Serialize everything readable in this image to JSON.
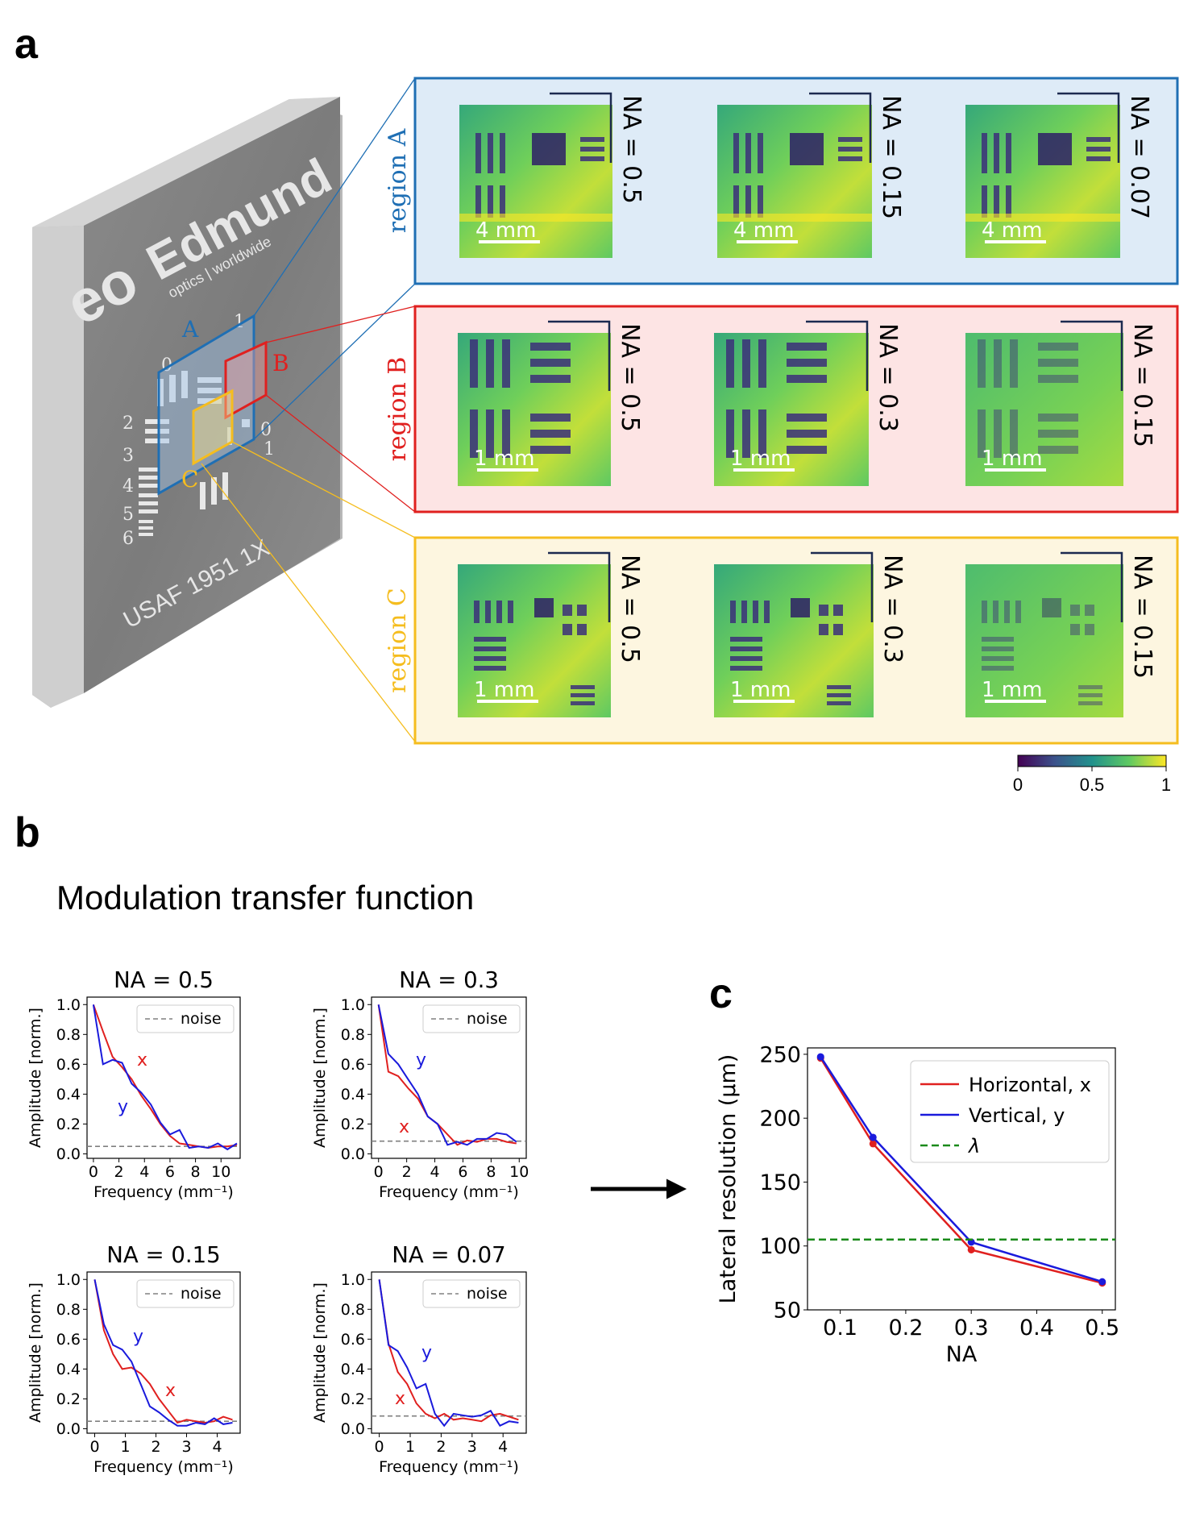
{
  "panel_labels": {
    "a": "a",
    "b": "b",
    "c": "c"
  },
  "target": {
    "brand": "Edmund",
    "brand_sub": "optics | worldwide",
    "logo": "eo",
    "usaf": "USAF  1951  1X",
    "region_letters": [
      "A",
      "B",
      "C"
    ],
    "group_numbers": [
      "0",
      "1",
      "2",
      "3",
      "4",
      "5",
      "6",
      "0",
      "1"
    ]
  },
  "regions": [
    {
      "label": "region A",
      "color": "#1f6fb4",
      "bg": "#deebf7",
      "tiles": [
        {
          "na": "NA = 0.5",
          "scale": "4 mm"
        },
        {
          "na": "NA = 0.15",
          "scale": "4 mm"
        },
        {
          "na": "NA = 0.07",
          "scale": "4 mm"
        }
      ]
    },
    {
      "label": "region B",
      "color": "#e0201f",
      "bg": "#fde4e4",
      "tiles": [
        {
          "na": "NA = 0.5",
          "scale": "1 mm"
        },
        {
          "na": "NA = 0.3",
          "scale": "1 mm"
        },
        {
          "na": "NA = 0.15",
          "scale": "1 mm"
        }
      ]
    },
    {
      "label": "region C",
      "color": "#f5bd1f",
      "bg": "#fdf6e0",
      "tiles": [
        {
          "na": "NA = 0.5",
          "scale": "1 mm"
        },
        {
          "na": "NA = 0.3",
          "scale": "1 mm"
        },
        {
          "na": "NA = 0.15",
          "scale": "1 mm"
        }
      ]
    }
  ],
  "colorbar": {
    "ticks": [
      "0",
      "0.5",
      "1"
    ],
    "colors": [
      "#440154",
      "#3b528b",
      "#21918c",
      "#5ec962",
      "#fde725"
    ]
  },
  "mtf_title": "Modulation transfer function",
  "chart_data": [
    {
      "type": "line",
      "title": "NA = 0.5",
      "xlabel": "Frequency (mm⁻¹)",
      "ylabel": "Amplitude [norm.]",
      "xlim": [
        -0.5,
        11.5
      ],
      "ylim": [
        -0.03,
        1.05
      ],
      "xticks": [
        "0",
        "2",
        "4",
        "6",
        "8",
        "10"
      ],
      "yticks": [
        "0.0",
        "0.2",
        "0.4",
        "0.6",
        "0.8",
        "1.0"
      ],
      "legend": "noise",
      "noise_level": 0.05,
      "annotations": [
        "x",
        "y"
      ],
      "series": [
        {
          "name": "x",
          "color": "#e0201f",
          "x": [
            0,
            0.75,
            1.5,
            2.25,
            3,
            3.75,
            4.5,
            5.25,
            6,
            6.75,
            7.5,
            8.25,
            9,
            9.75,
            10.5,
            11.25
          ],
          "y": [
            1.0,
            0.82,
            0.65,
            0.58,
            0.5,
            0.39,
            0.3,
            0.2,
            0.12,
            0.07,
            0.06,
            0.05,
            0.04,
            0.05,
            0.05,
            0.06
          ]
        },
        {
          "name": "y",
          "color": "#1a1adc",
          "x": [
            0,
            0.75,
            1.5,
            2.25,
            3,
            3.75,
            4.5,
            5.25,
            6,
            6.75,
            7.5,
            8.25,
            9,
            9.75,
            10.5,
            11.25
          ],
          "y": [
            1.0,
            0.6,
            0.63,
            0.61,
            0.47,
            0.41,
            0.33,
            0.21,
            0.13,
            0.16,
            0.04,
            0.05,
            0.04,
            0.07,
            0.03,
            0.07
          ]
        }
      ]
    },
    {
      "type": "line",
      "title": "NA = 0.3",
      "xlabel": "Frequency (mm⁻¹)",
      "ylabel": "Amplitude [norm.]",
      "xlim": [
        -0.5,
        10.5
      ],
      "ylim": [
        -0.03,
        1.05
      ],
      "xticks": [
        "0",
        "2",
        "4",
        "6",
        "8",
        "10"
      ],
      "yticks": [
        "0.0",
        "0.2",
        "0.4",
        "0.6",
        "0.8",
        "1.0"
      ],
      "legend": "noise",
      "noise_level": 0.085,
      "annotations": [
        "y",
        "x"
      ],
      "series": [
        {
          "name": "x",
          "color": "#e0201f",
          "x": [
            0,
            0.7,
            1.4,
            2.1,
            2.8,
            3.5,
            4.2,
            4.9,
            5.6,
            6.3,
            7,
            7.7,
            8.4,
            9.1,
            9.8
          ],
          "y": [
            1.0,
            0.55,
            0.52,
            0.44,
            0.37,
            0.25,
            0.2,
            0.13,
            0.06,
            0.09,
            0.08,
            0.1,
            0.1,
            0.08,
            0.07
          ]
        },
        {
          "name": "y",
          "color": "#1a1adc",
          "x": [
            0,
            0.7,
            1.4,
            2.1,
            2.8,
            3.5,
            4.2,
            4.9,
            5.6,
            6.3,
            7,
            7.7,
            8.4,
            9.1,
            9.8
          ],
          "y": [
            1.0,
            0.67,
            0.6,
            0.5,
            0.4,
            0.25,
            0.2,
            0.06,
            0.08,
            0.06,
            0.1,
            0.1,
            0.14,
            0.13,
            0.08
          ]
        }
      ]
    },
    {
      "type": "line",
      "title": "NA = 0.15",
      "xlabel": "Frequency (mm⁻¹)",
      "ylabel": "Amplitude [norm.]",
      "xlim": [
        -0.25,
        4.75
      ],
      "ylim": [
        -0.03,
        1.05
      ],
      "xticks": [
        "0",
        "1",
        "2",
        "3",
        "4"
      ],
      "yticks": [
        "0.0",
        "0.2",
        "0.4",
        "0.6",
        "0.8",
        "1.0"
      ],
      "legend": "noise",
      "noise_level": 0.05,
      "annotations": [
        "y",
        "x"
      ],
      "series": [
        {
          "name": "x",
          "color": "#e0201f",
          "x": [
            0,
            0.3,
            0.6,
            0.9,
            1.2,
            1.5,
            1.8,
            2.1,
            2.4,
            2.7,
            3.0,
            3.3,
            3.6,
            3.9,
            4.2,
            4.5
          ],
          "y": [
            1.0,
            0.66,
            0.5,
            0.4,
            0.41,
            0.37,
            0.3,
            0.2,
            0.12,
            0.04,
            0.06,
            0.05,
            0.04,
            0.05,
            0.08,
            0.06
          ]
        },
        {
          "name": "y",
          "color": "#1a1adc",
          "x": [
            0,
            0.3,
            0.6,
            0.9,
            1.2,
            1.5,
            1.8,
            2.1,
            2.4,
            2.7,
            3.0,
            3.3,
            3.6,
            3.9,
            4.2,
            4.5
          ],
          "y": [
            1.0,
            0.7,
            0.56,
            0.53,
            0.45,
            0.3,
            0.15,
            0.11,
            0.06,
            0.02,
            0.02,
            0.04,
            0.03,
            0.07,
            0.03,
            0.04
          ]
        }
      ]
    },
    {
      "type": "line",
      "title": "NA = 0.07",
      "xlabel": "Frequency (mm⁻¹)",
      "ylabel": "Amplitude [norm.]",
      "xlim": [
        -0.25,
        4.75
      ],
      "ylim": [
        -0.03,
        1.05
      ],
      "xticks": [
        "0",
        "1",
        "2",
        "3",
        "4"
      ],
      "yticks": [
        "0.0",
        "0.2",
        "0.4",
        "0.6",
        "0.8",
        "1.0"
      ],
      "legend": "noise",
      "noise_level": 0.085,
      "annotations": [
        "y",
        "x"
      ],
      "series": [
        {
          "name": "x",
          "color": "#e0201f",
          "x": [
            0,
            0.3,
            0.6,
            0.9,
            1.2,
            1.5,
            1.8,
            2.1,
            2.4,
            2.7,
            3.0,
            3.3,
            3.6,
            3.9,
            4.2,
            4.5
          ],
          "y": [
            1.0,
            0.57,
            0.38,
            0.3,
            0.17,
            0.1,
            0.07,
            0.1,
            0.06,
            0.07,
            0.06,
            0.05,
            0.09,
            0.1,
            0.08,
            0.06
          ]
        },
        {
          "name": "y",
          "color": "#1a1adc",
          "x": [
            0,
            0.3,
            0.6,
            0.9,
            1.2,
            1.5,
            1.8,
            2.1,
            2.4,
            2.7,
            3.0,
            3.3,
            3.6,
            3.9,
            4.2,
            4.5
          ],
          "y": [
            1.0,
            0.56,
            0.52,
            0.41,
            0.27,
            0.3,
            0.1,
            0.02,
            0.1,
            0.09,
            0.08,
            0.09,
            0.12,
            0.02,
            0.05,
            0.04
          ]
        }
      ]
    },
    {
      "type": "line",
      "xlabel": "NA",
      "ylabel": "Lateral resolution (μm)",
      "xlim": [
        0.05,
        0.52
      ],
      "ylim": [
        50,
        255
      ],
      "xticks": [
        "0.1",
        "0.2",
        "0.3",
        "0.4",
        "0.5"
      ],
      "yticks": [
        "50",
        "100",
        "150",
        "200",
        "250"
      ],
      "legend_placement": "top-right",
      "lambda": 105,
      "series": [
        {
          "name": "Horizontal, x",
          "color": "#e0201f",
          "x": [
            0.07,
            0.15,
            0.3,
            0.5
          ],
          "y": [
            247,
            180,
            97,
            71
          ]
        },
        {
          "name": "Vertical, y",
          "color": "#1a1adc",
          "x": [
            0.07,
            0.15,
            0.3,
            0.5
          ],
          "y": [
            248,
            185,
            103,
            72
          ]
        },
        {
          "name": "λ",
          "color": "#1a8a1a",
          "dashed": true
        }
      ]
    }
  ]
}
